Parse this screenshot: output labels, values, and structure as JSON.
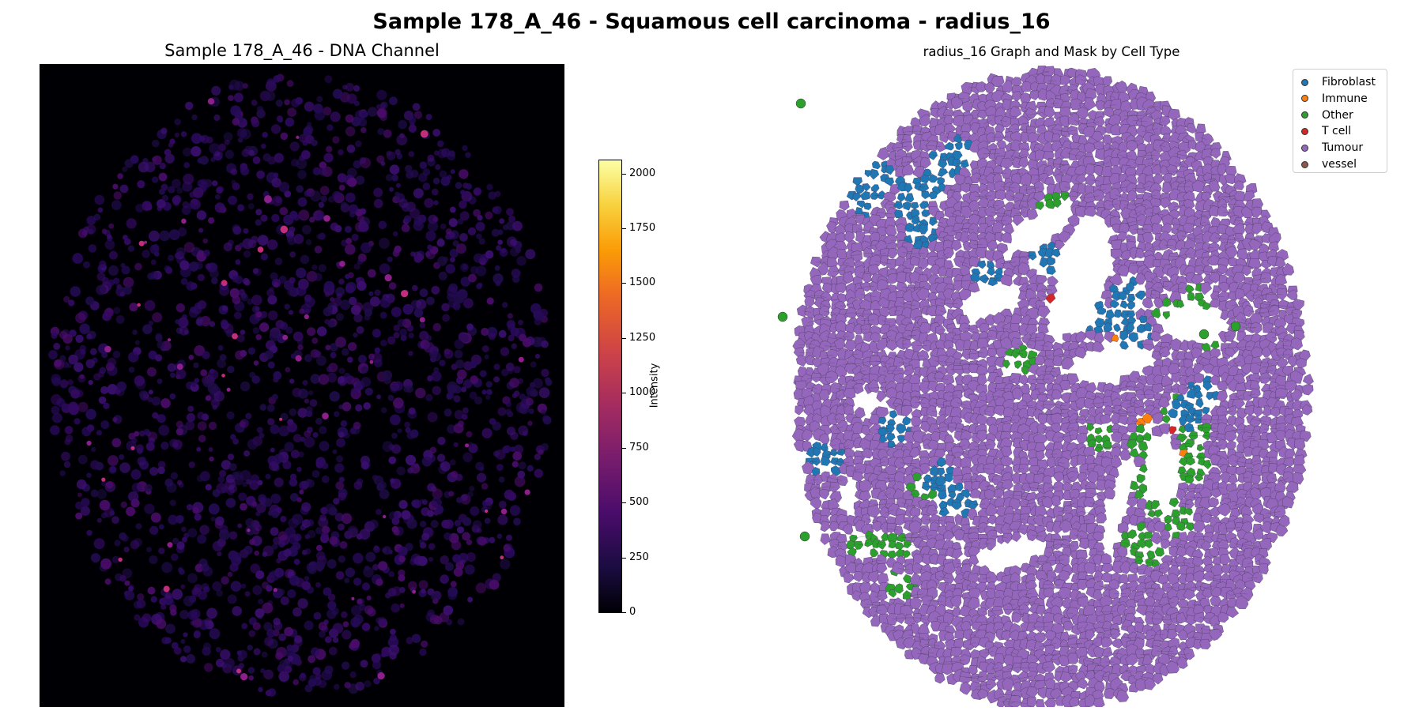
{
  "figure": {
    "suptitle": "Sample 178_A_46 - Squamous cell carcinoma - radius_16"
  },
  "left_panel": {
    "title": "Sample 178_A_46 - DNA Channel",
    "colorbar": {
      "label": "Intensity",
      "ticks": [
        "0",
        "250",
        "500",
        "750",
        "1000",
        "1250",
        "1500",
        "1750",
        "2000"
      ],
      "tick_values": [
        0,
        250,
        500,
        750,
        1000,
        1250,
        1500,
        1750,
        2000
      ],
      "max": 2060,
      "colormap": "inferno"
    }
  },
  "right_panel": {
    "title": "radius_16 Graph and Mask by Cell Type",
    "legend": [
      {
        "label": "Fibroblast",
        "color": "#1f77b4"
      },
      {
        "label": "Immune",
        "color": "#ff7f0e"
      },
      {
        "label": "Other",
        "color": "#2ca02c"
      },
      {
        "label": "T cell",
        "color": "#d62728"
      },
      {
        "label": "Tumour",
        "color": "#9467bd"
      },
      {
        "label": "vessel",
        "color": "#8c564b"
      }
    ]
  },
  "colors": {
    "background": "#000004",
    "tumour": "#9467bd",
    "fibroblast": "#1f77b4",
    "other": "#2ca02c",
    "immune": "#ff7f0e",
    "tcell": "#d62728",
    "vessel": "#8c564b"
  }
}
